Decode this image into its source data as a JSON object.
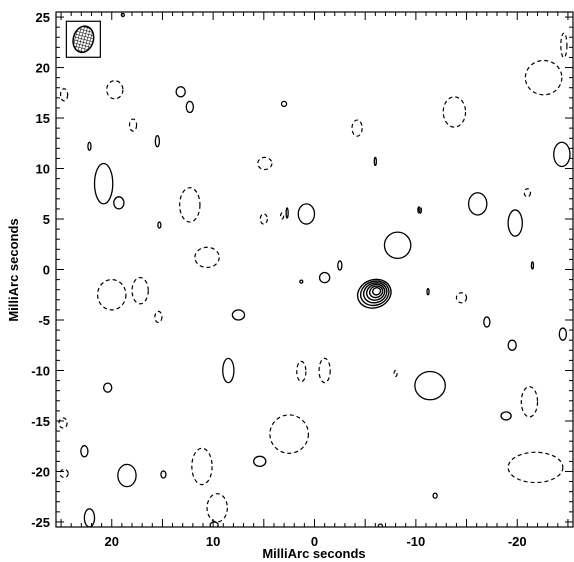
{
  "chart_data": {
    "type": "contour",
    "xlabel": "MilliArc seconds",
    "ylabel": "MilliArc seconds",
    "xlim": [
      25.5,
      -25.5
    ],
    "ylim": [
      -25.5,
      25.5
    ],
    "x_ticks": [
      20,
      10,
      0,
      -10,
      -20
    ],
    "y_ticks": [
      -25,
      -20,
      -15,
      -10,
      -5,
      0,
      5,
      10,
      15,
      20,
      25
    ],
    "x_tick_labels": [
      "20",
      "10",
      "0",
      "-10",
      "-20"
    ],
    "y_tick_labels": [
      "-25",
      "-20",
      "-15",
      "-10",
      "-5",
      "0",
      "5",
      "10",
      "15",
      "20",
      "25"
    ],
    "grid": false,
    "beam": {
      "x": 22.8,
      "y": 22.8,
      "major": 2.2,
      "minor": 1.6,
      "pa_deg": 15
    },
    "source": {
      "x": -5.9,
      "y": -2.4,
      "levels": 6
    },
    "positive_contours": [
      {
        "x": 22.2,
        "y": 12.2,
        "rx": 0.15,
        "ry": 0.4
      },
      {
        "x": 20.8,
        "y": 8.5,
        "rx": 0.9,
        "ry": 2.0
      },
      {
        "x": 19.3,
        "y": 6.6,
        "rx": 0.5,
        "ry": 0.6
      },
      {
        "x": 13.2,
        "y": 17.6,
        "rx": 0.45,
        "ry": 0.5
      },
      {
        "x": 12.3,
        "y": 16.1,
        "rx": 0.35,
        "ry": 0.55
      },
      {
        "x": 15.5,
        "y": 12.7,
        "rx": 0.2,
        "ry": 0.55
      },
      {
        "x": 15.3,
        "y": 4.4,
        "rx": 0.15,
        "ry": 0.3
      },
      {
        "x": 3.0,
        "y": 16.4,
        "rx": 0.25,
        "ry": 0.25
      },
      {
        "x": 2.7,
        "y": 5.6,
        "rx": 0.1,
        "ry": 0.5
      },
      {
        "x": 0.8,
        "y": 5.5,
        "rx": 0.8,
        "ry": 1.0
      },
      {
        "x": 1.3,
        "y": -1.2,
        "rx": 0.15,
        "ry": 0.15
      },
      {
        "x": -1.0,
        "y": -0.8,
        "rx": 0.5,
        "ry": 0.5
      },
      {
        "x": -2.5,
        "y": 0.4,
        "rx": 0.2,
        "ry": 0.45
      },
      {
        "x": -6.0,
        "y": 10.7,
        "rx": 0.1,
        "ry": 0.4
      },
      {
        "x": -8.2,
        "y": 2.4,
        "rx": 1.3,
        "ry": 1.3
      },
      {
        "x": -10.3,
        "y": 5.9,
        "rx": 0.1,
        "ry": 0.3
      },
      {
        "x": -11.2,
        "y": -2.2,
        "rx": 0.1,
        "ry": 0.3
      },
      {
        "x": -16.1,
        "y": 6.5,
        "rx": 0.9,
        "ry": 1.1
      },
      {
        "x": -19.8,
        "y": 4.6,
        "rx": 0.7,
        "ry": 1.3
      },
      {
        "x": -21.5,
        "y": 0.4,
        "rx": 0.1,
        "ry": 0.35
      },
      {
        "x": -24.4,
        "y": 11.4,
        "rx": 0.8,
        "ry": 1.2
      },
      {
        "x": -17.0,
        "y": -5.2,
        "rx": 0.3,
        "ry": 0.5
      },
      {
        "x": -19.5,
        "y": -7.5,
        "rx": 0.4,
        "ry": 0.5
      },
      {
        "x": -24.5,
        "y": -6.4,
        "rx": 0.35,
        "ry": 0.6
      },
      {
        "x": -11.4,
        "y": -11.5,
        "rx": 1.5,
        "ry": 1.4
      },
      {
        "x": -11.9,
        "y": -22.4,
        "rx": 0.2,
        "ry": 0.25
      },
      {
        "x": -6.5,
        "y": -25.4,
        "rx": 0.2,
        "ry": 0.2
      },
      {
        "x": 7.5,
        "y": -4.5,
        "rx": 0.6,
        "ry": 0.5
      },
      {
        "x": 8.5,
        "y": -10.0,
        "rx": 0.55,
        "ry": 1.2
      },
      {
        "x": 20.4,
        "y": -11.7,
        "rx": 0.4,
        "ry": 0.45
      },
      {
        "x": 22.7,
        "y": -18.0,
        "rx": 0.35,
        "ry": 0.55
      },
      {
        "x": 18.5,
        "y": -20.4,
        "rx": 0.9,
        "ry": 1.1
      },
      {
        "x": 14.9,
        "y": -20.3,
        "rx": 0.25,
        "ry": 0.35
      },
      {
        "x": 5.4,
        "y": -19.0,
        "rx": 0.6,
        "ry": 0.5
      },
      {
        "x": 22.2,
        "y": -24.6,
        "rx": 0.5,
        "ry": 0.9
      },
      {
        "x": 9.9,
        "y": -25.3,
        "rx": 0.4,
        "ry": 0.3
      },
      {
        "x": 18.9,
        "y": 25.2,
        "rx": 0.15,
        "ry": 0.15
      },
      {
        "x": -18.9,
        "y": -14.5,
        "rx": 0.5,
        "ry": 0.4
      }
    ],
    "negative_contours": [
      {
        "x": 24.7,
        "y": 17.3,
        "rx": 0.35,
        "ry": 0.6
      },
      {
        "x": 19.7,
        "y": 17.8,
        "rx": 0.8,
        "ry": 0.9
      },
      {
        "x": 17.9,
        "y": 14.3,
        "rx": 0.35,
        "ry": 0.6
      },
      {
        "x": 12.3,
        "y": 6.4,
        "rx": 1.0,
        "ry": 1.7
      },
      {
        "x": 10.6,
        "y": 1.2,
        "rx": 1.2,
        "ry": 1.0
      },
      {
        "x": 5.0,
        "y": 5.0,
        "rx": 0.35,
        "ry": 0.5
      },
      {
        "x": 4.9,
        "y": 10.5,
        "rx": 0.7,
        "ry": 0.6
      },
      {
        "x": 3.2,
        "y": 5.3,
        "rx": 0.15,
        "ry": 0.3
      },
      {
        "x": 20.0,
        "y": -2.5,
        "rx": 1.4,
        "ry": 1.5
      },
      {
        "x": 17.2,
        "y": -2.1,
        "rx": 0.8,
        "ry": 1.3
      },
      {
        "x": 15.4,
        "y": -4.7,
        "rx": 0.35,
        "ry": 0.55
      },
      {
        "x": 1.3,
        "y": -10.1,
        "rx": 0.45,
        "ry": 1.0
      },
      {
        "x": -1.0,
        "y": -10.0,
        "rx": 0.55,
        "ry": 1.2
      },
      {
        "x": -4.2,
        "y": 14.0,
        "rx": 0.5,
        "ry": 0.8
      },
      {
        "x": -13.8,
        "y": 15.6,
        "rx": 1.1,
        "ry": 1.5
      },
      {
        "x": -10.4,
        "y": 5.9,
        "rx": 0.15,
        "ry": 0.35
      },
      {
        "x": -14.5,
        "y": -2.8,
        "rx": 0.5,
        "ry": 0.5
      },
      {
        "x": -21.0,
        "y": 7.6,
        "rx": 0.3,
        "ry": 0.4
      },
      {
        "x": -22.6,
        "y": 19.0,
        "rx": 1.8,
        "ry": 1.7
      },
      {
        "x": -21.2,
        "y": -13.1,
        "rx": 0.8,
        "ry": 1.5
      },
      {
        "x": -21.8,
        "y": -19.6,
        "rx": 2.7,
        "ry": 1.5
      },
      {
        "x": 2.5,
        "y": -16.3,
        "rx": 1.9,
        "ry": 1.9
      },
      {
        "x": 11.1,
        "y": -19.5,
        "rx": 1.0,
        "ry": 1.8
      },
      {
        "x": 9.6,
        "y": -23.6,
        "rx": 1.0,
        "ry": 1.4
      },
      {
        "x": 24.8,
        "y": -15.2,
        "rx": 0.4,
        "ry": 0.5
      },
      {
        "x": 24.7,
        "y": -20.2,
        "rx": 0.4,
        "ry": 0.4
      },
      {
        "x": -8.0,
        "y": -10.3,
        "rx": 0.15,
        "ry": 0.3
      },
      {
        "x": -24.6,
        "y": 22.2,
        "rx": 0.3,
        "ry": 1.2
      }
    ]
  }
}
